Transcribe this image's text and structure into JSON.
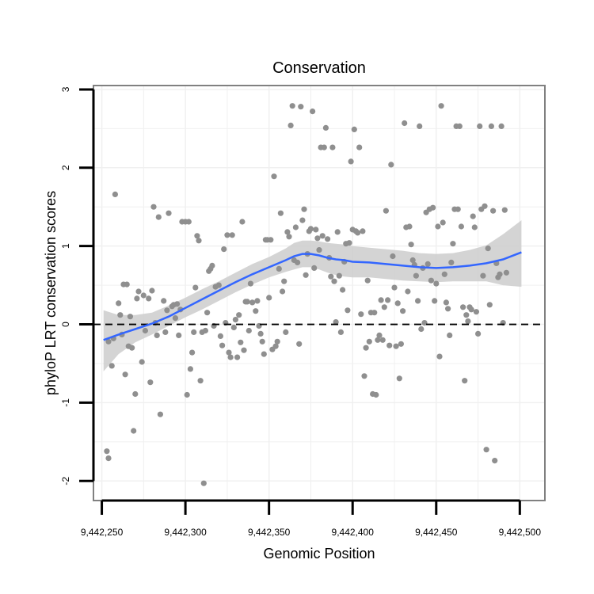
{
  "chart_data": {
    "type": "scatter",
    "title": "Conservation",
    "xlabel": "Genomic Position",
    "ylabel": "phyloP LRT conservation scores",
    "xlim": [
      9442245,
      9442515
    ],
    "ylim": [
      -2.25,
      3.05
    ],
    "x_ticks": [
      9442250,
      9442300,
      9442350,
      9442400,
      9442450,
      9442500
    ],
    "x_tick_labels": [
      "9,442,250",
      "9,442,300",
      "9,442,350",
      "9,442,400",
      "9,442,450",
      "9,442,500"
    ],
    "y_ticks": [
      -2,
      -1,
      0,
      1,
      2,
      3
    ],
    "y_tick_labels": [
      "-2",
      "-1",
      "0",
      "1",
      "2",
      "3"
    ],
    "reference_line": {
      "y": 0,
      "style": "dashed"
    },
    "grid": true,
    "colors": {
      "points": "#8f8f8f",
      "smooth": "#3366ff",
      "band": "#cccccc",
      "frame": "#808080",
      "grid": "#f0f0f0"
    },
    "points": [
      [
        9442253,
        -1.62
      ],
      [
        9442254,
        -1.71
      ],
      [
        9442254,
        -0.22
      ],
      [
        9442256,
        -0.53
      ],
      [
        9442257,
        -0.18
      ],
      [
        9442258,
        1.66
      ],
      [
        9442260,
        0.27
      ],
      [
        9442261,
        0.12
      ],
      [
        9442262,
        -0.13
      ],
      [
        9442263,
        0.51
      ],
      [
        9442264,
        -0.64
      ],
      [
        9442265,
        0.51
      ],
      [
        9442266,
        -0.28
      ],
      [
        9442267,
        0.1
      ],
      [
        9442268,
        -0.3
      ],
      [
        9442269,
        -1.36
      ],
      [
        9442270,
        -0.89
      ],
      [
        9442271,
        0.33
      ],
      [
        9442272,
        0.42
      ],
      [
        9442274,
        -0.48
      ],
      [
        9442275,
        0.37
      ],
      [
        9442276,
        -0.08
      ],
      [
        9442278,
        0.33
      ],
      [
        9442279,
        -0.74
      ],
      [
        9442280,
        0.43
      ],
      [
        9442281,
        1.5
      ],
      [
        9442282,
        0.02
      ],
      [
        9442283,
        -0.14
      ],
      [
        9442284,
        1.37
      ],
      [
        9442285,
        -1.15
      ],
      [
        9442287,
        0.3
      ],
      [
        9442288,
        -0.1
      ],
      [
        9442289,
        0.18
      ],
      [
        9442290,
        1.42
      ],
      [
        9442292,
        0.23
      ],
      [
        9442293,
        0.25
      ],
      [
        9442294,
        0.08
      ],
      [
        9442295,
        0.26
      ],
      [
        9442296,
        -0.14
      ],
      [
        9442297,
        0.19
      ],
      [
        9442298,
        1.31
      ],
      [
        9442300,
        1.31
      ],
      [
        9442301,
        -0.9
      ],
      [
        9442302,
        1.31
      ],
      [
        9442303,
        -0.57
      ],
      [
        9442304,
        -0.36
      ],
      [
        9442305,
        -0.1
      ],
      [
        9442306,
        0.47
      ],
      [
        9442307,
        1.13
      ],
      [
        9442308,
        1.07
      ],
      [
        9442309,
        -0.72
      ],
      [
        9442310,
        -0.1
      ],
      [
        9442311,
        -2.03
      ],
      [
        9442312,
        -0.08
      ],
      [
        9442313,
        0.15
      ],
      [
        9442314,
        0.68
      ],
      [
        9442315,
        0.71
      ],
      [
        9442316,
        0.75
      ],
      [
        9442317,
        -0.02
      ],
      [
        9442318,
        0.48
      ],
      [
        9442320,
        0.5
      ],
      [
        9442321,
        -0.15
      ],
      [
        9442322,
        -0.27
      ],
      [
        9442323,
        0.96
      ],
      [
        9442324,
        0.02
      ],
      [
        9442325,
        1.14
      ],
      [
        9442326,
        -0.36
      ],
      [
        9442327,
        -0.42
      ],
      [
        9442328,
        1.14
      ],
      [
        9442329,
        -0.04
      ],
      [
        9442330,
        0.06
      ],
      [
        9442331,
        -0.42
      ],
      [
        9442332,
        0.12
      ],
      [
        9442333,
        -0.23
      ],
      [
        9442334,
        1.31
      ],
      [
        9442335,
        -0.33
      ],
      [
        9442336,
        0.29
      ],
      [
        9442337,
        0.29
      ],
      [
        9442338,
        -0.08
      ],
      [
        9442339,
        0.52
      ],
      [
        9442340,
        0.28
      ],
      [
        9442342,
        0.17
      ],
      [
        9442343,
        0.3
      ],
      [
        9442344,
        -0.02
      ],
      [
        9442345,
        -0.12
      ],
      [
        9442346,
        -0.22
      ],
      [
        9442347,
        -0.38
      ],
      [
        9442348,
        1.08
      ],
      [
        9442349,
        1.08
      ],
      [
        9442350,
        0.34
      ],
      [
        9442351,
        1.08
      ],
      [
        9442352,
        -0.32
      ],
      [
        9442353,
        1.89
      ],
      [
        9442354,
        -0.28
      ],
      [
        9442355,
        -0.22
      ],
      [
        9442356,
        0.71
      ],
      [
        9442357,
        1.42
      ],
      [
        9442358,
        0.42
      ],
      [
        9442359,
        0.55
      ],
      [
        9442360,
        -0.1
      ],
      [
        9442361,
        1.18
      ],
      [
        9442362,
        1.12
      ],
      [
        9442363,
        2.54
      ],
      [
        9442364,
        2.79
      ],
      [
        9442365,
        0.82
      ],
      [
        9442366,
        1.24
      ],
      [
        9442367,
        0.79
      ],
      [
        9442368,
        -0.25
      ],
      [
        9442369,
        2.78
      ],
      [
        9442370,
        1.33
      ],
      [
        9442371,
        1.47
      ],
      [
        9442372,
        0.63
      ],
      [
        9442373,
        0.9
      ],
      [
        9442374,
        1.19
      ],
      [
        9442375,
        1.22
      ],
      [
        9442376,
        2.72
      ],
      [
        9442377,
        0.72
      ],
      [
        9442378,
        1.21
      ],
      [
        9442379,
        1.1
      ],
      [
        9442380,
        0.95
      ],
      [
        9442381,
        2.26
      ],
      [
        9442382,
        1.13
      ],
      [
        9442383,
        2.26
      ],
      [
        9442384,
        2.51
      ],
      [
        9442385,
        1.09
      ],
      [
        9442386,
        0.85
      ],
      [
        9442387,
        0.61
      ],
      [
        9442388,
        2.26
      ],
      [
        9442389,
        0.55
      ],
      [
        9442390,
        0.03
      ],
      [
        9442391,
        1.18
      ],
      [
        9442392,
        0.62
      ],
      [
        9442393,
        -0.1
      ],
      [
        9442394,
        0.44
      ],
      [
        9442395,
        0.8
      ],
      [
        9442396,
        1.03
      ],
      [
        9442397,
        0.18
      ],
      [
        9442398,
        1.04
      ],
      [
        9442399,
        2.08
      ],
      [
        9442400,
        1.21
      ],
      [
        9442401,
        2.49
      ],
      [
        9442402,
        1.19
      ],
      [
        9442403,
        1.17
      ],
      [
        9442404,
        2.26
      ],
      [
        9442405,
        0.13
      ],
      [
        9442406,
        1.19
      ],
      [
        9442407,
        -0.66
      ],
      [
        9442408,
        -0.3
      ],
      [
        9442409,
        0.56
      ],
      [
        9442410,
        -0.22
      ],
      [
        9442411,
        0.15
      ],
      [
        9442412,
        -0.89
      ],
      [
        9442413,
        0.15
      ],
      [
        9442414,
        -0.9
      ],
      [
        9442415,
        -0.2
      ],
      [
        9442416,
        -0.14
      ],
      [
        9442417,
        0.31
      ],
      [
        9442418,
        -0.2
      ],
      [
        9442419,
        0.22
      ],
      [
        9442420,
        1.45
      ],
      [
        9442421,
        0.31
      ],
      [
        9442422,
        -0.27
      ],
      [
        9442423,
        2.04
      ],
      [
        9442424,
        0.87
      ],
      [
        9442425,
        0.47
      ],
      [
        9442426,
        -0.28
      ],
      [
        9442427,
        0.27
      ],
      [
        9442428,
        -0.69
      ],
      [
        9442429,
        -0.25
      ],
      [
        9442430,
        0.17
      ],
      [
        9442431,
        2.57
      ],
      [
        9442432,
        1.24
      ],
      [
        9442433,
        0.42
      ],
      [
        9442434,
        1.25
      ],
      [
        9442435,
        1.02
      ],
      [
        9442436,
        0.82
      ],
      [
        9442437,
        0.76
      ],
      [
        9442438,
        0.62
      ],
      [
        9442439,
        0.3
      ],
      [
        9442440,
        2.53
      ],
      [
        9442441,
        -0.06
      ],
      [
        9442442,
        0.72
      ],
      [
        9442443,
        0.02
      ],
      [
        9442444,
        1.43
      ],
      [
        9442445,
        0.77
      ],
      [
        9442446,
        1.47
      ],
      [
        9442447,
        0.56
      ],
      [
        9442448,
        1.49
      ],
      [
        9442449,
        0.3
      ],
      [
        9442450,
        0.52
      ],
      [
        9442451,
        1.25
      ],
      [
        9442452,
        -0.41
      ],
      [
        9442453,
        2.79
      ],
      [
        9442454,
        1.3
      ],
      [
        9442455,
        0.64
      ],
      [
        9442456,
        0.28
      ],
      [
        9442457,
        0.2
      ],
      [
        9442458,
        -0.14
      ],
      [
        9442459,
        0.79
      ],
      [
        9442460,
        1.03
      ],
      [
        9442461,
        1.47
      ],
      [
        9442462,
        2.53
      ],
      [
        9442463,
        1.47
      ],
      [
        9442464,
        2.53
      ],
      [
        9442465,
        1.25
      ],
      [
        9442466,
        0.22
      ],
      [
        9442467,
        -0.72
      ],
      [
        9442468,
        0.12
      ],
      [
        9442469,
        0.04
      ],
      [
        9442470,
        0.22
      ],
      [
        9442471,
        0.19
      ],
      [
        9442472,
        1.38
      ],
      [
        9442473,
        1.24
      ],
      [
        9442474,
        0.16
      ],
      [
        9442475,
        -0.12
      ],
      [
        9442476,
        2.53
      ],
      [
        9442477,
        1.47
      ],
      [
        9442478,
        0.62
      ],
      [
        9442479,
        1.51
      ],
      [
        9442480,
        -1.6
      ],
      [
        9442481,
        0.97
      ],
      [
        9442482,
        0.25
      ],
      [
        9442483,
        2.53
      ],
      [
        9442484,
        1.45
      ],
      [
        9442485,
        -1.74
      ],
      [
        9442486,
        0.78
      ],
      [
        9442487,
        0.6
      ],
      [
        9442488,
        0.64
      ],
      [
        9442489,
        2.53
      ],
      [
        9442490,
        0.02
      ],
      [
        9442491,
        1.46
      ],
      [
        9442492,
        0.66
      ]
    ],
    "smooth": {
      "x": [
        9442251,
        9442260,
        9442270,
        9442280,
        9442290,
        9442300,
        9442310,
        9442320,
        9442330,
        9442340,
        9442350,
        9442360,
        9442365,
        9442370,
        9442375,
        9442380,
        9442385,
        9442390,
        9442395,
        9442400,
        9442410,
        9442420,
        9442430,
        9442440,
        9442450,
        9442460,
        9442470,
        9442480,
        9442490,
        9442501
      ],
      "y": [
        -0.2,
        -0.13,
        -0.06,
        0.01,
        0.1,
        0.21,
        0.32,
        0.43,
        0.54,
        0.64,
        0.73,
        0.82,
        0.87,
        0.9,
        0.9,
        0.88,
        0.85,
        0.83,
        0.82,
        0.8,
        0.79,
        0.77,
        0.75,
        0.73,
        0.72,
        0.73,
        0.75,
        0.78,
        0.83,
        0.92
      ],
      "lower": [
        -0.6,
        -0.38,
        -0.23,
        -0.13,
        -0.02,
        0.09,
        0.19,
        0.3,
        0.41,
        0.51,
        0.6,
        0.67,
        0.7,
        0.73,
        0.73,
        0.7,
        0.66,
        0.63,
        0.61,
        0.6,
        0.6,
        0.58,
        0.56,
        0.55,
        0.54,
        0.55,
        0.55,
        0.55,
        0.5,
        0.48
      ],
      "upper": [
        0.18,
        0.12,
        0.12,
        0.15,
        0.24,
        0.34,
        0.45,
        0.55,
        0.66,
        0.77,
        0.86,
        0.97,
        1.04,
        1.07,
        1.07,
        1.06,
        1.04,
        1.03,
        1.02,
        1.0,
        0.98,
        0.96,
        0.94,
        0.91,
        0.9,
        0.91,
        0.95,
        1.01,
        1.15,
        1.33
      ]
    }
  }
}
